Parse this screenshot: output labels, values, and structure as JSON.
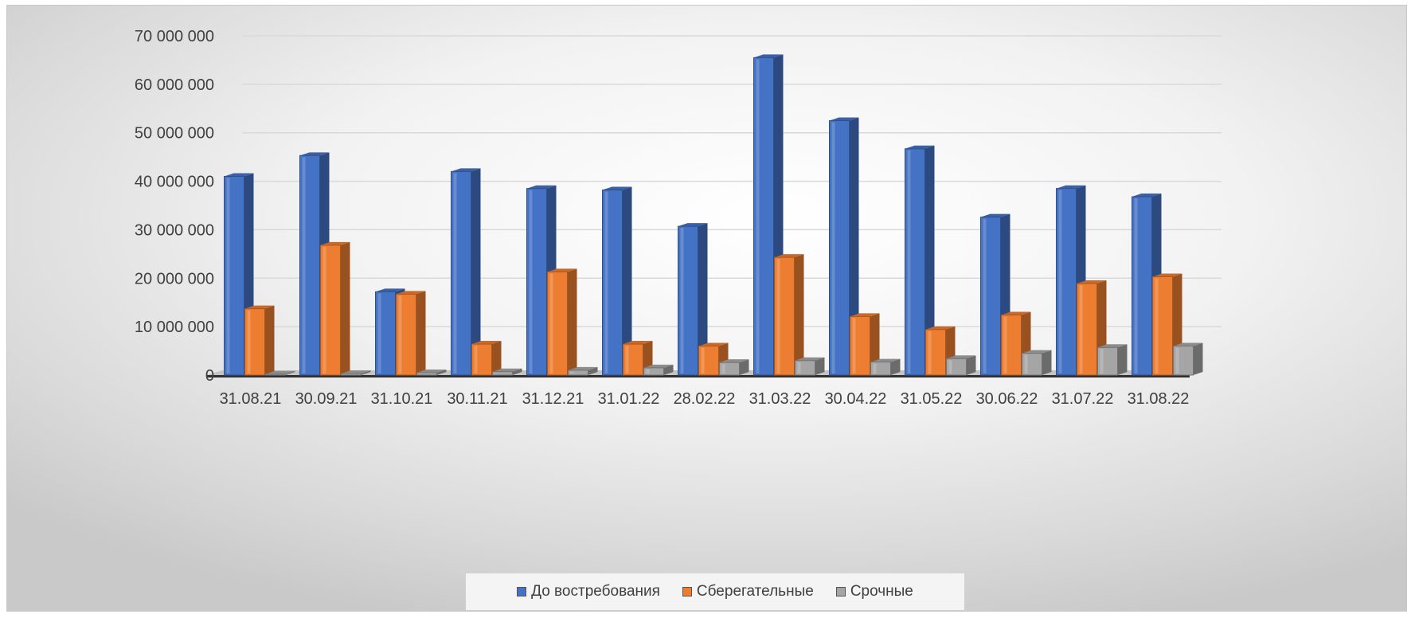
{
  "chart_data": {
    "type": "bar",
    "title": "",
    "xlabel": "",
    "ylabel": "",
    "ylim": [
      0,
      70000000
    ],
    "yticks": [
      0,
      10000000,
      20000000,
      30000000,
      40000000,
      50000000,
      60000000,
      70000000
    ],
    "ytick_labels": [
      "0",
      "10 000 000",
      "20 000 000",
      "30 000 000",
      "40 000 000",
      "50 000 000",
      "60 000 000",
      "70 000 000"
    ],
    "grid": true,
    "legend_position": "bottom",
    "categories": [
      "31.08.21",
      "30.09.21",
      "31.10.21",
      "30.11.21",
      "31.12.21",
      "31.01.22",
      "28.02.22",
      "31.03.22",
      "30.04.22",
      "31.05.22",
      "30.06.22",
      "31.07.22",
      "31.08.22"
    ],
    "series": [
      {
        "name": "До востребования",
        "color": "#4472c4",
        "values": [
          41000000,
          45300000,
          17200000,
          42000000,
          38500000,
          38200000,
          30700000,
          65500000,
          52500000,
          46700000,
          32600000,
          38500000,
          36800000
        ]
      },
      {
        "name": "Сберегательные",
        "color": "#ed7d31",
        "values": [
          13700000,
          26800000,
          16700000,
          6400000,
          21300000,
          6400000,
          6000000,
          24300000,
          12100000,
          9400000,
          12400000,
          18900000,
          20300000
        ]
      },
      {
        "name": "Срочные",
        "color": "#a5a5a5",
        "values": [
          200000,
          300000,
          500000,
          700000,
          1000000,
          1500000,
          2600000,
          3000000,
          2700000,
          3400000,
          4500000,
          5700000,
          6000000
        ]
      }
    ]
  }
}
